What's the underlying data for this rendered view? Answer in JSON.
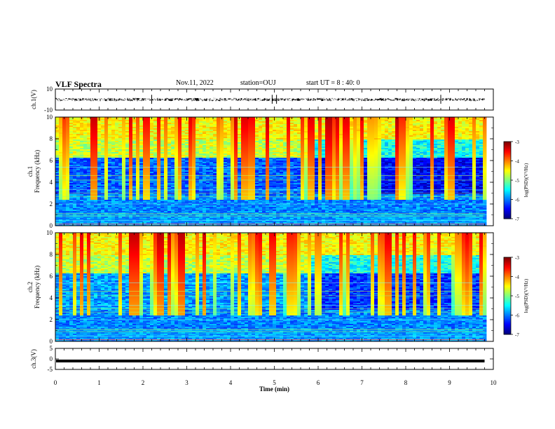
{
  "header": {
    "title": "VLF Spectra",
    "date": "Nov.11, 2022",
    "station": "station=OUJ",
    "start_time": "start UT =  8 : 40: 0"
  },
  "chart_data": [
    {
      "type": "line",
      "panel": "ch1-waveform",
      "ylabel": "ch.1(V)",
      "ylim": [
        -10,
        10
      ],
      "yticks": [
        "10",
        "-10"
      ],
      "xlim": [
        0,
        10
      ],
      "description_values": {
        "baseline_v": 0,
        "noise_amplitude_v": 1.5,
        "data_end_min": 9.8
      },
      "color": "#000000"
    },
    {
      "type": "heatmap",
      "panel": "ch1-spectrogram",
      "ylabel": "ch.1\nFrequency (kHz)",
      "ylim": [
        0,
        10
      ],
      "yticks": [
        "0",
        "2",
        "4",
        "6",
        "8",
        "10"
      ],
      "xlim": [
        0,
        10
      ],
      "data_end_min": 9.8,
      "colorbar": {
        "label": "log(PSD)(V²/Hz)",
        "range": [
          -7,
          -3
        ],
        "ticks": [
          "-3",
          "-4",
          "-5",
          "-6",
          "-7"
        ]
      }
    },
    {
      "type": "heatmap",
      "panel": "ch2-spectrogram",
      "ylabel": "ch.2\nFrequency (kHz)",
      "ylim": [
        0,
        10
      ],
      "yticks": [
        "0",
        "2",
        "4",
        "6",
        "8",
        "10"
      ],
      "xlim": [
        0,
        10
      ],
      "data_end_min": 9.8,
      "colorbar": {
        "label": "log(PSD)(V²/Hz)",
        "range": [
          -7,
          -3
        ],
        "ticks": [
          "-3",
          "-4",
          "-5",
          "-6",
          "-7"
        ]
      }
    },
    {
      "type": "line",
      "panel": "ch3-waveform",
      "ylabel": "ch.3(V)",
      "ylim": [
        -5,
        5
      ],
      "yticks": [
        "5",
        "0",
        "-5"
      ],
      "xlim": [
        0,
        10
      ],
      "level_v": -1,
      "data_end_min": 9.8,
      "color": "#000000"
    }
  ],
  "xaxis": {
    "label": "Time (min)",
    "ticks": [
      "0",
      "1",
      "2",
      "3",
      "4",
      "5",
      "6",
      "7",
      "8",
      "9",
      "10"
    ]
  }
}
